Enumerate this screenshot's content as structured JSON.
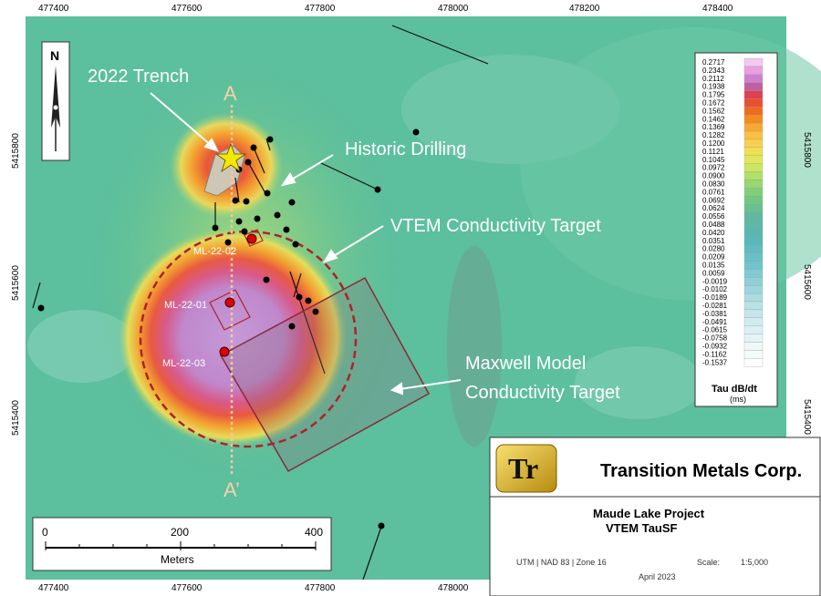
{
  "axis": {
    "x_ticks": [
      "477400",
      "477600",
      "477800",
      "478000",
      "478200",
      "478400"
    ],
    "y_ticks": [
      "5415800",
      "5415600",
      "5415400"
    ]
  },
  "annotations": {
    "trench": "2022 Trench",
    "historic_drilling": "Historic Drilling",
    "vtem_target": "VTEM Conductivity Target",
    "maxwell_line1": "Maxwell Model",
    "maxwell_line2": "Conductivity Target"
  },
  "drillholes": [
    "ML-22-02",
    "ML-22-01",
    "ML-22-03"
  ],
  "section": {
    "start": "A",
    "end": "A’"
  },
  "north_arrow": "N",
  "scale_bar": {
    "ticks": [
      "0",
      "200",
      "400"
    ],
    "unit": "Meters"
  },
  "legend": {
    "values": [
      "0.2717",
      "0.2343",
      "0.2112",
      "0.1938",
      "0.1795",
      "0.1672",
      "0.1562",
      "0.1462",
      "0.1369",
      "0.1282",
      "0.1200",
      "0.1121",
      "0.1045",
      "0.0972",
      "0.0900",
      "0.0830",
      "0.0761",
      "0.0692",
      "0.0624",
      "0.0556",
      "0.0488",
      "0.0420",
      "0.0351",
      "0.0280",
      "0.0209",
      "0.0135",
      "0.0059",
      "-0.0019",
      "-0.0102",
      "-0.0189",
      "-0.0281",
      "-0.0381",
      "-0.0491",
      "-0.0615",
      "-0.0758",
      "-0.0932",
      "-0.1162",
      "-0.1537"
    ],
    "colors": [
      "#f5c8f2",
      "#e8a0e0",
      "#d080d0",
      "#c060a0",
      "#e04050",
      "#e85030",
      "#f06a20",
      "#f58a20",
      "#f8a830",
      "#fac040",
      "#f8d050",
      "#f0e050",
      "#e0e858",
      "#c8e860",
      "#b0e068",
      "#98d870",
      "#80d078",
      "#70c880",
      "#68c090",
      "#60b8a0",
      "#5cb8a8",
      "#58b8b0",
      "#58b8b8",
      "#60bcc0",
      "#68c0c8",
      "#70c4cc",
      "#80cad2",
      "#8ed0d6",
      "#9cd6dc",
      "#aadce2",
      "#b8e2e6",
      "#c4e6ea",
      "#d0ecee",
      "#daf0f2",
      "#e4f4f6",
      "#eef8f8",
      "#f6fbfc",
      "#ffffff"
    ],
    "title": "Tau dB/dt",
    "unit": "(ms)"
  },
  "title_block": {
    "logo": "Tr",
    "company": "Transition Metals Corp.",
    "project": "Maude Lake Project",
    "map_title": "VTEM TauSF",
    "projection": "UTM | NAD 83 | Zone 16",
    "scale_label": "Scale:",
    "scale_value": "1:5,000",
    "date": "April 2023"
  },
  "colors": {
    "background": "#5cbf9e",
    "anomaly_core": "#c9a0d8",
    "target_outline": "#b0202a",
    "maxwell_outline": "#8a2a3a",
    "section_line": "#f2c9a0"
  }
}
